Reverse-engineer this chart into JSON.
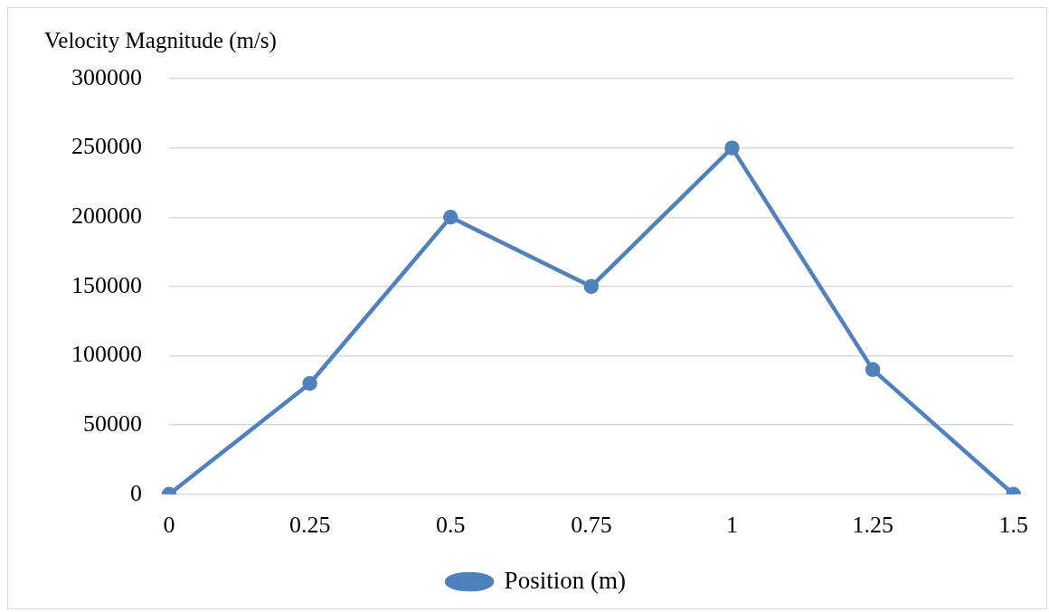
{
  "chart_data": {
    "type": "line",
    "title": "Velocity Magnitude (m/s)",
    "categories": [
      "0",
      "0.25",
      "0.5",
      "0.75",
      "1",
      "1.25",
      "1.5"
    ],
    "series": [
      {
        "name": "Position (m)",
        "color": "#4f81bd",
        "values": [
          0,
          80000,
          200000,
          150000,
          250000,
          90000,
          0
        ]
      }
    ],
    "ylim": [
      0,
      300000
    ],
    "yticks": [
      0,
      50000,
      100000,
      150000,
      200000,
      250000,
      300000
    ],
    "grid": "y",
    "legend": "bottom",
    "marker": "circle",
    "line_style": "solid"
  }
}
